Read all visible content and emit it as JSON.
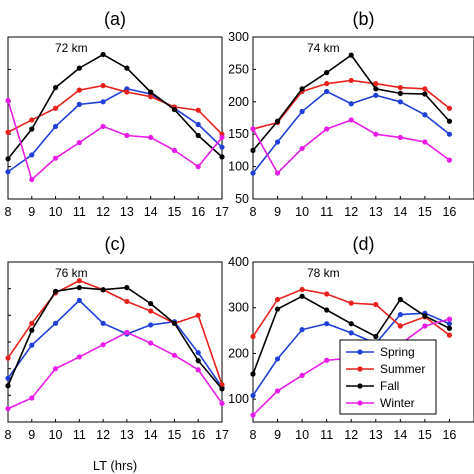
{
  "chart_data": [
    {
      "type": "line",
      "title": "(a)",
      "annotation": "72 km",
      "x": [
        8,
        9,
        10,
        11,
        12,
        13,
        14,
        15,
        16,
        17
      ],
      "yticks": [
        "",
        "",
        "",
        "",
        "",
        ""
      ],
      "ylim": [
        50,
        300
      ],
      "grid": false,
      "series": [
        {
          "name": "Spring",
          "color": "#1f3fd6",
          "values": [
            92,
            118,
            162,
            196,
            200,
            220,
            212,
            190,
            165,
            130
          ]
        },
        {
          "name": "Summer",
          "color": "#e8211c",
          "values": [
            153,
            172,
            190,
            218,
            225,
            215,
            208,
            192,
            187,
            150
          ]
        },
        {
          "name": "Fall",
          "color": "#000000",
          "values": [
            112,
            158,
            222,
            252,
            273,
            252,
            215,
            188,
            148,
            115
          ]
        },
        {
          "name": "Winter",
          "color": "#e81ce8",
          "values": [
            202,
            80,
            113,
            137,
            162,
            148,
            145,
            125,
            100,
            145
          ]
        }
      ]
    },
    {
      "type": "line",
      "title": "(b)",
      "annotation": "74 km",
      "x": [
        8,
        9,
        10,
        11,
        12,
        13,
        14,
        15,
        16
      ],
      "yticks": [
        "50",
        "100",
        "150",
        "200",
        "250",
        "300"
      ],
      "ylim": [
        50,
        300
      ],
      "grid": false,
      "series": [
        {
          "name": "Spring",
          "color": "#1f3fd6",
          "values": [
            90,
            138,
            185,
            216,
            197,
            210,
            200,
            180,
            150
          ]
        },
        {
          "name": "Summer",
          "color": "#e8211c",
          "values": [
            158,
            168,
            216,
            228,
            233,
            228,
            222,
            220,
            190
          ]
        },
        {
          "name": "Fall",
          "color": "#000000",
          "values": [
            125,
            170,
            220,
            245,
            272,
            220,
            213,
            212,
            170
          ]
        },
        {
          "name": "Winter",
          "color": "#e81ce8",
          "values": [
            158,
            90,
            128,
            158,
            172,
            150,
            145,
            138,
            110
          ]
        }
      ]
    },
    {
      "type": "line",
      "title": "(c)",
      "annotation": "76 km",
      "x": [
        8,
        9,
        10,
        11,
        12,
        13,
        14,
        15,
        16,
        17
      ],
      "yticks": [
        "",
        "",
        "",
        "",
        ""
      ],
      "ylim": [
        100,
        400
      ],
      "grid": false,
      "series": [
        {
          "name": "Spring",
          "color": "#1f3fd6",
          "values": [
            182,
            244,
            285,
            328,
            285,
            265,
            282,
            288,
            230,
            165
          ]
        },
        {
          "name": "Summer",
          "color": "#e8211c",
          "values": [
            220,
            285,
            342,
            365,
            348,
            326,
            308,
            285,
            300,
            170
          ]
        },
        {
          "name": "Fall",
          "color": "#000000",
          "values": [
            168,
            272,
            345,
            352,
            348,
            352,
            322,
            285,
            215,
            162
          ]
        },
        {
          "name": "Winter",
          "color": "#e81ce8",
          "values": [
            125,
            145,
            200,
            222,
            245,
            268,
            248,
            225,
            198,
            135
          ]
        }
      ]
    },
    {
      "type": "line",
      "title": "(d)",
      "annotation": "78 km",
      "x": [
        8,
        9,
        10,
        11,
        12,
        13,
        14,
        15,
        16
      ],
      "yticks": [
        "100",
        "200",
        "300",
        "400"
      ],
      "ylim": [
        50,
        400
      ],
      "grid": false,
      "legend": {
        "placement": "bottom-left",
        "entries": [
          "Spring",
          "Summer",
          "Fall",
          "Winter"
        ]
      },
      "series": [
        {
          "name": "Spring",
          "color": "#1f3fd6",
          "values": [
            108,
            188,
            252,
            265,
            245,
            222,
            285,
            288,
            265
          ]
        },
        {
          "name": "Summer",
          "color": "#e8211c",
          "values": [
            237,
            318,
            340,
            330,
            310,
            307,
            260,
            280,
            240
          ]
        },
        {
          "name": "Fall",
          "color": "#000000",
          "values": [
            155,
            297,
            325,
            295,
            265,
            237,
            318,
            282,
            255
          ]
        },
        {
          "name": "Winter",
          "color": "#e81ce8",
          "values": [
            65,
            118,
            152,
            185,
            190,
            218,
            220,
            260,
            275
          ]
        }
      ]
    }
  ],
  "xlabel": "LT (hrs)"
}
